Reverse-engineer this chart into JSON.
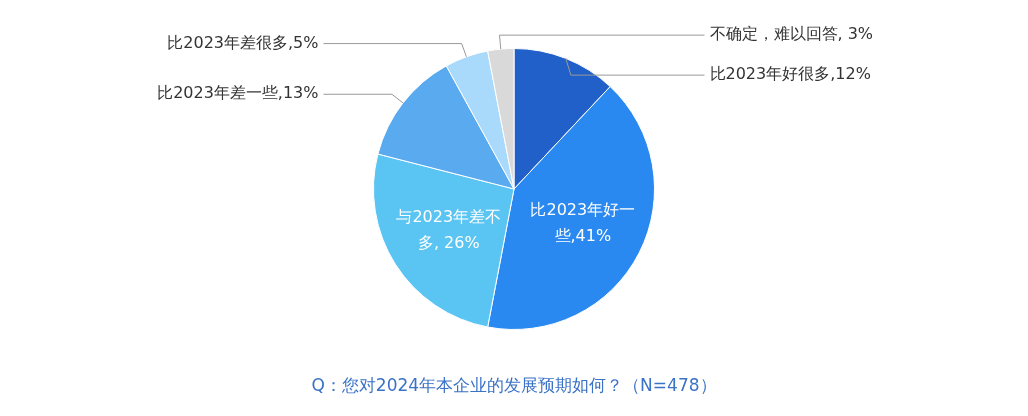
{
  "chart_data": {
    "type": "pie",
    "categories": [
      "比2023年好很多,12%",
      "比2023年好一些,41%",
      "与2023年差不多, 26%",
      "比2023年差一些,13%",
      "比2023年差很多,5%",
      "不确定，难以回答, 3%"
    ],
    "values": [
      12,
      41,
      26,
      13,
      5,
      3
    ],
    "colors": [
      "#2160c8",
      "#2a89f0",
      "#5ac4f2",
      "#5aaaf0",
      "#a9d9fb",
      "#d9d9d9"
    ],
    "annotations": [
      "Q：您对2024年本企业的发展预期如何？（N=478）"
    ],
    "legend": false
  }
}
